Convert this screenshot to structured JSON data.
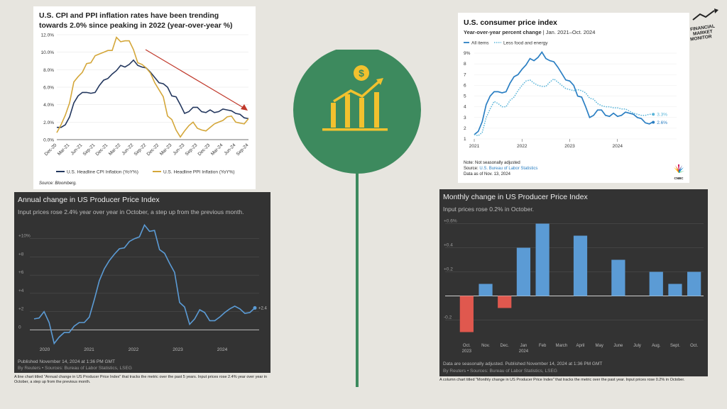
{
  "panel1": {
    "title_line1": "U.S. CPI and PPI inflation rates have been trending",
    "title_line2": "towards 2.0% since peaking in 2022 (year-over-year %)",
    "source": "Source: Bloomberg."
  },
  "panel2": {
    "title": "U.S. consumer price index",
    "subtitle_bold": "Year-over-year percent change",
    "subtitle_rest": " | Jan. 2021–Oct. 2024",
    "note": "Note: Not seasonally adjusted",
    "source_prefix": "Source: ",
    "source_link": "U.S. Bureau of Labor Statistics",
    "data_as_of": "Data as of Nov. 13, 2024",
    "brand": "CNBC"
  },
  "panel3": {
    "title": "Annual change in US Producer Price Index",
    "subtitle": "Input prices rose 2.4% year over year in October, a step up from the previous month.",
    "published": "Published November 14, 2024 at 1:36 PM GMT",
    "byline": "By Reuters • Sources: Bureau of Labor Statistics, LSEG",
    "caption": "A line chart titled \"Annual change in US Producer Price Index\" that tracks the metric over the past 5 years. Input prices rose 2.4% year over year in October, a step up from the previous month."
  },
  "panel4": {
    "title": "Monthly change in US Producer Price Index",
    "subtitle": "Input prices rose 0.2% in October.",
    "note": "Data are seasonally adjusted. Published November 14, 2024 at 1:36 PM GMT",
    "byline": "By Reuters • Sources: Bureau of Labor Statistics, LSEG",
    "caption": "A column chart titled \"Monthly change in US Producer Price Index\" that tracks the metric over the past year. Input prices rose 0.2% in October."
  },
  "logo": {
    "line1": "FINANCIAL",
    "line2": "MARKET",
    "line3": "MONITOR"
  },
  "colors": {
    "circle_green": "#3d8a5e",
    "icon_yellow": "#f2c12e",
    "cpi_navy": "#23375e",
    "ppi_gold": "#d4a73a",
    "trend_red": "#c0392b",
    "cnbc_blue": "#2b7fc3",
    "reuters_blue": "#5b9bd5",
    "reuters_red": "#e0584e"
  },
  "chart_data": [
    {
      "type": "line",
      "title": "U.S. CPI and PPI inflation rates have been trending towards 2.0% since peaking in 2022 (year-over-year %)",
      "x_ticks": [
        "Dec-20",
        "Mar-21",
        "Jun-21",
        "Sep-21",
        "Dec-21",
        "Mar-22",
        "Jun-22",
        "Sep-22",
        "Dec-22",
        "Mar-23",
        "Jun-23",
        "Sep-23",
        "Dec-23",
        "Mar-24",
        "Jun-24",
        "Sep-24"
      ],
      "y_ticks": [
        "0.0%",
        "2.0%",
        "4.0%",
        "6.0%",
        "8.0%",
        "10.0%",
        "12.0%"
      ],
      "ylim": [
        0,
        12
      ],
      "x": [
        0,
        1,
        2,
        3,
        4,
        5,
        6,
        7,
        8,
        9,
        10,
        11,
        12,
        13,
        14,
        15,
        16,
        17,
        18,
        19,
        20,
        21,
        22,
        23,
        24,
        25,
        26,
        27,
        28,
        29,
        30,
        31,
        32,
        33,
        34,
        35,
        36,
        37,
        38,
        39,
        40,
        41,
        42,
        43,
        44,
        45
      ],
      "series": [
        {
          "name": "U.S. Headline CPI Inflation (YoY%)",
          "values": [
            1.4,
            1.4,
            1.7,
            2.6,
            4.2,
            5.0,
            5.4,
            5.4,
            5.3,
            5.4,
            6.2,
            6.8,
            7.0,
            7.5,
            7.9,
            8.5,
            8.3,
            8.6,
            9.1,
            8.5,
            8.3,
            8.2,
            7.7,
            7.1,
            6.5,
            6.4,
            6.0,
            5.0,
            4.9,
            4.0,
            3.0,
            3.2,
            3.7,
            3.7,
            3.2,
            3.1,
            3.4,
            3.1,
            3.2,
            3.5,
            3.4,
            3.3,
            3.0,
            2.9,
            2.5,
            2.4
          ]
        },
        {
          "name": "U.S. Headline PPI Inflation (YoY%)",
          "values": [
            0.8,
            1.7,
            2.8,
            4.2,
            6.6,
            7.2,
            7.7,
            8.7,
            8.8,
            9.6,
            9.8,
            10.0,
            10.2,
            10.2,
            11.7,
            11.2,
            11.3,
            11.3,
            10.3,
            8.8,
            8.6,
            8.2,
            7.6,
            6.5,
            5.7,
            4.9,
            2.7,
            2.3,
            1.1,
            0.3,
            1.0,
            1.6,
            2.0,
            1.3,
            1.1,
            1.0,
            1.4,
            1.8,
            2.0,
            2.2,
            2.6,
            2.7,
            2.0,
            1.9,
            1.8,
            2.4
          ]
        }
      ],
      "annotation": "red arrow indicating downward trend"
    },
    {
      "type": "line",
      "title": "U.S. consumer price index",
      "x_ticks": [
        "2021",
        "2022",
        "2023",
        "2024"
      ],
      "y_ticks": [
        "1",
        "2",
        "3",
        "4",
        "5",
        "6",
        "7",
        "8",
        "9%"
      ],
      "ylim": [
        1,
        9
      ],
      "series": [
        {
          "name": "All items",
          "end_label": "2.6%",
          "values": [
            1.4,
            1.7,
            2.6,
            4.2,
            5.0,
            5.4,
            5.4,
            5.3,
            5.4,
            6.2,
            6.8,
            7.0,
            7.5,
            7.9,
            8.5,
            8.3,
            8.6,
            9.1,
            8.5,
            8.3,
            8.2,
            7.7,
            7.1,
            6.5,
            6.4,
            6.0,
            5.0,
            4.9,
            4.0,
            3.0,
            3.2,
            3.7,
            3.7,
            3.2,
            3.1,
            3.4,
            3.1,
            3.2,
            3.5,
            3.4,
            3.3,
            3.0,
            2.9,
            2.5,
            2.4,
            2.6
          ]
        },
        {
          "name": "Less food and energy",
          "end_label": "3.3%",
          "values": [
            1.4,
            1.3,
            1.6,
            3.0,
            3.8,
            4.5,
            4.3,
            4.0,
            4.0,
            4.6,
            4.9,
            5.5,
            6.0,
            6.4,
            6.5,
            6.2,
            6.0,
            5.9,
            5.9,
            6.3,
            6.6,
            6.3,
            6.0,
            5.7,
            5.6,
            5.5,
            5.6,
            5.5,
            5.3,
            4.8,
            4.7,
            4.3,
            4.1,
            4.0,
            4.0,
            3.9,
            3.9,
            3.8,
            3.8,
            3.6,
            3.4,
            3.3,
            3.2,
            3.2,
            3.3,
            3.3
          ]
        }
      ]
    },
    {
      "type": "line",
      "title": "Annual change in US Producer Price Index",
      "x_ticks": [
        "2020",
        "2021",
        "2022",
        "2023",
        "2024"
      ],
      "y_ticks": [
        "0",
        "+2",
        "+4",
        "+6",
        "+8",
        "+10%"
      ],
      "ylim": [
        -2,
        12
      ],
      "end_label": "+2.4",
      "series": [
        {
          "name": "PPI YoY",
          "values": [
            1.2,
            1.3,
            2.0,
            0.8,
            -1.5,
            -0.8,
            -0.3,
            -0.3,
            0.4,
            0.8,
            0.8,
            1.4,
            3.3,
            5.4,
            6.7,
            7.6,
            8.3,
            8.9,
            9.0,
            9.7,
            10.0,
            10.2,
            11.5,
            10.8,
            10.9,
            8.8,
            8.4,
            7.3,
            6.3,
            3.0,
            2.5,
            0.6,
            1.2,
            2.2,
            1.9,
            1.0,
            1.0,
            1.4,
            1.9,
            2.3,
            2.6,
            2.3,
            1.8,
            1.9,
            2.4
          ]
        }
      ]
    },
    {
      "type": "bar",
      "title": "Monthly change in US Producer Price Index",
      "categories": [
        "Oct. 2023",
        "Nov.",
        "Dec.",
        "Jan 2024",
        "Feb",
        "March",
        "April",
        "May",
        "June",
        "July",
        "Aug.",
        "Sept.",
        "Oct."
      ],
      "values": [
        -0.3,
        0.1,
        -0.1,
        0.4,
        0.6,
        0.0,
        0.5,
        0.0,
        0.3,
        0.0,
        0.2,
        0.1,
        0.2
      ],
      "y_ticks": [
        "-0.2",
        "0",
        "+0.2",
        "+0.4",
        "+0.6%"
      ],
      "ylim": [
        -0.35,
        0.65
      ]
    }
  ]
}
